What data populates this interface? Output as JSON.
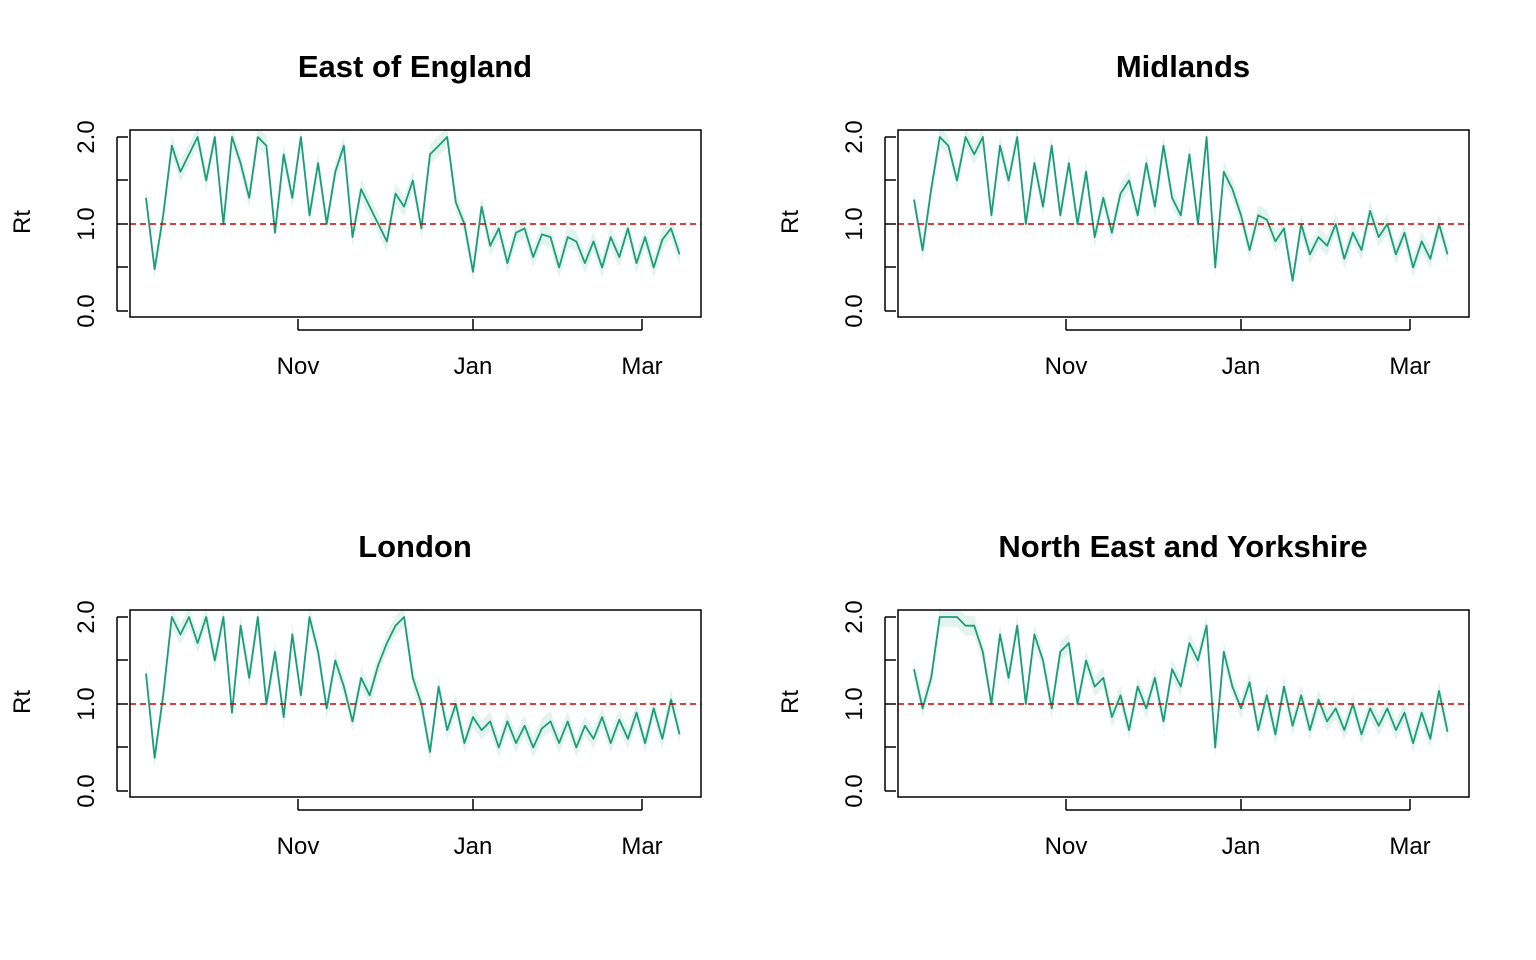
{
  "figure": {
    "colors": {
      "line": "#1b9e77",
      "band": "#e3f3ed",
      "reference": "#cc0000",
      "frame": "#000000"
    }
  },
  "chart_data": [
    {
      "type": "line",
      "title": "East of England",
      "xlabel": "",
      "ylabel": "Rt",
      "ylim": [
        0,
        2
      ],
      "yticks": [
        "0.0",
        "1.0",
        "2.0"
      ],
      "xticks": [
        {
          "date": "2020-11-01",
          "label": "Nov"
        },
        {
          "date": "2021-01-01",
          "label": "Jan"
        },
        {
          "date": "2021-03-01",
          "label": "Mar"
        }
      ],
      "xlim": [
        "2020-09-01",
        "2021-03-26"
      ],
      "reference_line": 1.0,
      "series": [
        {
          "type": "line",
          "x": [
            "2020-09-09",
            "2020-09-12",
            "2020-09-15",
            "2020-09-18",
            "2020-09-21",
            "2020-09-24",
            "2020-09-27",
            "2020-09-30",
            "2020-10-03",
            "2020-10-06",
            "2020-10-09",
            "2020-10-12",
            "2020-10-15",
            "2020-10-18",
            "2020-10-21",
            "2020-10-24",
            "2020-10-27",
            "2020-10-30",
            "2020-11-02",
            "2020-11-05",
            "2020-11-08",
            "2020-11-11",
            "2020-11-14",
            "2020-11-17",
            "2020-11-20",
            "2020-11-23",
            "2020-11-26",
            "2020-11-29",
            "2020-12-02",
            "2020-12-05",
            "2020-12-08",
            "2020-12-11",
            "2020-12-14",
            "2020-12-17",
            "2020-12-20",
            "2020-12-23",
            "2020-12-26",
            "2020-12-29",
            "2021-01-01",
            "2021-01-04",
            "2021-01-07",
            "2021-01-10",
            "2021-01-13",
            "2021-01-16",
            "2021-01-19",
            "2021-01-22",
            "2021-01-25",
            "2021-01-28",
            "2021-01-31",
            "2021-02-03",
            "2021-02-06",
            "2021-02-09",
            "2021-02-12",
            "2021-02-15",
            "2021-02-18",
            "2021-02-21",
            "2021-02-24",
            "2021-02-27",
            "2021-03-02",
            "2021-03-05",
            "2021-03-08",
            "2021-03-11",
            "2021-03-14"
          ],
          "y": [
            1.3,
            0.48,
            1.1,
            1.9,
            1.6,
            1.8,
            2.0,
            1.5,
            2.0,
            1.0,
            2.0,
            1.7,
            1.3,
            2.0,
            1.9,
            0.9,
            1.8,
            1.3,
            2.0,
            1.1,
            1.7,
            1.0,
            1.6,
            1.9,
            0.85,
            1.4,
            1.2,
            1.0,
            0.8,
            1.35,
            1.2,
            1.5,
            0.95,
            1.8,
            1.9,
            2.0,
            1.25,
            1.0,
            0.45,
            1.2,
            0.75,
            0.95,
            0.55,
            0.9,
            0.95,
            0.62,
            0.88,
            0.85,
            0.5,
            0.85,
            0.8,
            0.55,
            0.8,
            0.5,
            0.85,
            0.62,
            0.95,
            0.55,
            0.85,
            0.5,
            0.82,
            0.95,
            0.65
          ]
        }
      ]
    },
    {
      "type": "line",
      "title": "Midlands",
      "xlabel": "",
      "ylabel": "Rt",
      "ylim": [
        0,
        2
      ],
      "yticks": [
        "0.0",
        "1.0",
        "2.0"
      ],
      "xticks": [
        {
          "date": "2020-11-01",
          "label": "Nov"
        },
        {
          "date": "2021-01-01",
          "label": "Jan"
        },
        {
          "date": "2021-03-01",
          "label": "Mar"
        }
      ],
      "xlim": [
        "2020-09-01",
        "2021-03-26"
      ],
      "reference_line": 1.0,
      "series": [
        {
          "type": "line",
          "x": [
            "2020-09-09",
            "2020-09-12",
            "2020-09-15",
            "2020-09-18",
            "2020-09-21",
            "2020-09-24",
            "2020-09-27",
            "2020-09-30",
            "2020-10-03",
            "2020-10-06",
            "2020-10-09",
            "2020-10-12",
            "2020-10-15",
            "2020-10-18",
            "2020-10-21",
            "2020-10-24",
            "2020-10-27",
            "2020-10-30",
            "2020-11-02",
            "2020-11-05",
            "2020-11-08",
            "2020-11-11",
            "2020-11-14",
            "2020-11-17",
            "2020-11-20",
            "2020-11-23",
            "2020-11-26",
            "2020-11-29",
            "2020-12-02",
            "2020-12-05",
            "2020-12-08",
            "2020-12-11",
            "2020-12-14",
            "2020-12-17",
            "2020-12-20",
            "2020-12-23",
            "2020-12-26",
            "2020-12-29",
            "2021-01-01",
            "2021-01-04",
            "2021-01-07",
            "2021-01-10",
            "2021-01-13",
            "2021-01-16",
            "2021-01-19",
            "2021-01-22",
            "2021-01-25",
            "2021-01-28",
            "2021-01-31",
            "2021-02-03",
            "2021-02-06",
            "2021-02-09",
            "2021-02-12",
            "2021-02-15",
            "2021-02-18",
            "2021-02-21",
            "2021-02-24",
            "2021-02-27",
            "2021-03-02",
            "2021-03-05",
            "2021-03-08",
            "2021-03-11",
            "2021-03-14"
          ],
          "y": [
            1.28,
            0.7,
            1.4,
            2.0,
            1.9,
            1.5,
            2.0,
            1.8,
            2.0,
            1.1,
            1.9,
            1.5,
            2.0,
            1.0,
            1.7,
            1.2,
            1.9,
            1.1,
            1.7,
            1.0,
            1.6,
            0.85,
            1.3,
            0.9,
            1.35,
            1.5,
            1.1,
            1.7,
            1.2,
            1.9,
            1.3,
            1.1,
            1.8,
            1.0,
            2.0,
            0.5,
            1.6,
            1.4,
            1.1,
            0.7,
            1.1,
            1.05,
            0.8,
            0.95,
            0.35,
            1.0,
            0.65,
            0.85,
            0.75,
            1.0,
            0.6,
            0.9,
            0.7,
            1.15,
            0.85,
            1.0,
            0.65,
            0.9,
            0.5,
            0.8,
            0.6,
            1.0,
            0.65
          ]
        }
      ]
    },
    {
      "type": "line",
      "title": "London",
      "xlabel": "",
      "ylabel": "Rt",
      "ylim": [
        0,
        2
      ],
      "yticks": [
        "0.0",
        "1.0",
        "2.0"
      ],
      "xticks": [
        {
          "date": "2020-11-01",
          "label": "Nov"
        },
        {
          "date": "2021-01-01",
          "label": "Jan"
        },
        {
          "date": "2021-03-01",
          "label": "Mar"
        }
      ],
      "xlim": [
        "2020-09-01",
        "2021-03-26"
      ],
      "reference_line": 1.0,
      "series": [
        {
          "type": "line",
          "x": [
            "2020-09-09",
            "2020-09-12",
            "2020-09-15",
            "2020-09-18",
            "2020-09-21",
            "2020-09-24",
            "2020-09-27",
            "2020-09-30",
            "2020-10-03",
            "2020-10-06",
            "2020-10-09",
            "2020-10-12",
            "2020-10-15",
            "2020-10-18",
            "2020-10-21",
            "2020-10-24",
            "2020-10-27",
            "2020-10-30",
            "2020-11-02",
            "2020-11-05",
            "2020-11-08",
            "2020-11-11",
            "2020-11-14",
            "2020-11-17",
            "2020-11-20",
            "2020-11-23",
            "2020-11-26",
            "2020-11-29",
            "2020-12-02",
            "2020-12-05",
            "2020-12-08",
            "2020-12-11",
            "2020-12-14",
            "2020-12-17",
            "2020-12-20",
            "2020-12-23",
            "2020-12-26",
            "2020-12-29",
            "2021-01-01",
            "2021-01-04",
            "2021-01-07",
            "2021-01-10",
            "2021-01-13",
            "2021-01-16",
            "2021-01-19",
            "2021-01-22",
            "2021-01-25",
            "2021-01-28",
            "2021-01-31",
            "2021-02-03",
            "2021-02-06",
            "2021-02-09",
            "2021-02-12",
            "2021-02-15",
            "2021-02-18",
            "2021-02-21",
            "2021-02-24",
            "2021-02-27",
            "2021-03-02",
            "2021-03-05",
            "2021-03-08",
            "2021-03-11",
            "2021-03-14"
          ],
          "y": [
            1.35,
            0.38,
            1.1,
            2.0,
            1.8,
            2.0,
            1.7,
            2.0,
            1.5,
            2.0,
            0.9,
            1.9,
            1.3,
            2.0,
            1.0,
            1.6,
            0.85,
            1.8,
            1.1,
            2.0,
            1.6,
            0.95,
            1.5,
            1.2,
            0.8,
            1.3,
            1.1,
            1.45,
            1.7,
            1.9,
            2.0,
            1.3,
            1.0,
            0.45,
            1.2,
            0.7,
            1.0,
            0.55,
            0.85,
            0.7,
            0.8,
            0.5,
            0.8,
            0.55,
            0.75,
            0.5,
            0.72,
            0.8,
            0.55,
            0.8,
            0.5,
            0.75,
            0.6,
            0.85,
            0.55,
            0.82,
            0.6,
            0.9,
            0.55,
            0.95,
            0.6,
            1.05,
            0.65
          ]
        }
      ]
    },
    {
      "type": "line",
      "title": "North East and Yorkshire",
      "xlabel": "",
      "ylabel": "Rt",
      "ylim": [
        0,
        2
      ],
      "yticks": [
        "0.0",
        "1.0",
        "2.0"
      ],
      "xticks": [
        {
          "date": "2020-11-01",
          "label": "Nov"
        },
        {
          "date": "2021-01-01",
          "label": "Jan"
        },
        {
          "date": "2021-03-01",
          "label": "Mar"
        }
      ],
      "xlim": [
        "2020-09-01",
        "2021-03-26"
      ],
      "reference_line": 1.0,
      "series": [
        {
          "type": "line",
          "x": [
            "2020-09-09",
            "2020-09-12",
            "2020-09-15",
            "2020-09-18",
            "2020-09-21",
            "2020-09-24",
            "2020-09-27",
            "2020-09-30",
            "2020-10-03",
            "2020-10-06",
            "2020-10-09",
            "2020-10-12",
            "2020-10-15",
            "2020-10-18",
            "2020-10-21",
            "2020-10-24",
            "2020-10-27",
            "2020-10-30",
            "2020-11-02",
            "2020-11-05",
            "2020-11-08",
            "2020-11-11",
            "2020-11-14",
            "2020-11-17",
            "2020-11-20",
            "2020-11-23",
            "2020-11-26",
            "2020-11-29",
            "2020-12-02",
            "2020-12-05",
            "2020-12-08",
            "2020-12-11",
            "2020-12-14",
            "2020-12-17",
            "2020-12-20",
            "2020-12-23",
            "2020-12-26",
            "2020-12-29",
            "2021-01-01",
            "2021-01-04",
            "2021-01-07",
            "2021-01-10",
            "2021-01-13",
            "2021-01-16",
            "2021-01-19",
            "2021-01-22",
            "2021-01-25",
            "2021-01-28",
            "2021-01-31",
            "2021-02-03",
            "2021-02-06",
            "2021-02-09",
            "2021-02-12",
            "2021-02-15",
            "2021-02-18",
            "2021-02-21",
            "2021-02-24",
            "2021-02-27",
            "2021-03-02",
            "2021-03-05",
            "2021-03-08",
            "2021-03-11",
            "2021-03-14"
          ],
          "y": [
            1.4,
            0.95,
            1.3,
            2.0,
            2.0,
            2.0,
            1.9,
            1.9,
            1.6,
            1.0,
            1.8,
            1.3,
            1.9,
            1.0,
            1.8,
            1.5,
            0.95,
            1.6,
            1.7,
            1.0,
            1.5,
            1.2,
            1.3,
            0.85,
            1.1,
            0.7,
            1.2,
            0.95,
            1.3,
            0.8,
            1.4,
            1.2,
            1.7,
            1.5,
            1.9,
            0.5,
            1.6,
            1.2,
            0.95,
            1.25,
            0.7,
            1.1,
            0.65,
            1.2,
            0.75,
            1.1,
            0.7,
            1.05,
            0.8,
            0.95,
            0.7,
            1.0,
            0.65,
            0.95,
            0.75,
            0.95,
            0.7,
            0.9,
            0.55,
            0.9,
            0.6,
            1.15,
            0.68
          ]
        }
      ]
    }
  ]
}
